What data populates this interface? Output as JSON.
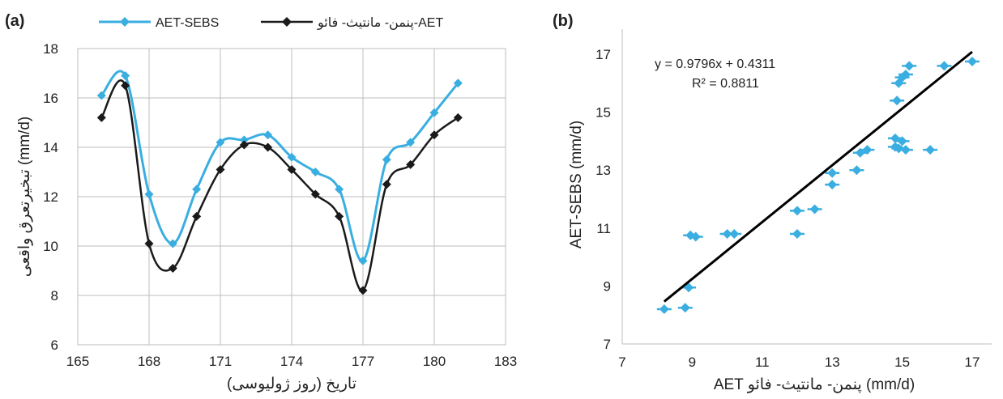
{
  "colors": {
    "sebs": "#3aaee0",
    "aet": "#1a1a1a",
    "grid": "#bdbdbd",
    "fit": "#000000"
  },
  "chart_data": [
    {
      "type": "line",
      "panel": "(a)",
      "xlabel": "تاریخ (روز ژولیوسی)",
      "ylabel": "تبخیرتعرق واقعی (mm/d)",
      "xlim": [
        165,
        183
      ],
      "ylim": [
        6,
        18
      ],
      "xticks": [
        165,
        168,
        171,
        174,
        177,
        180,
        183
      ],
      "yticks": [
        6,
        8,
        10,
        12,
        14,
        16,
        18
      ],
      "grid": true,
      "legend_position": "top",
      "series": [
        {
          "name": "AET-SEBS",
          "color": "#3aaee0",
          "x": [
            166,
            167,
            168,
            169,
            170,
            171,
            172,
            173,
            174,
            175,
            176,
            177,
            178,
            179,
            180,
            181
          ],
          "y": [
            16.1,
            16.9,
            12.1,
            10.1,
            12.3,
            14.2,
            14.3,
            14.5,
            13.6,
            13.0,
            12.3,
            9.4,
            13.5,
            14.2,
            15.4,
            16.6
          ]
        },
        {
          "name": "پنمن- مانتیث- فائو-AET",
          "color": "#1a1a1a",
          "x": [
            166,
            167,
            168,
            169,
            170,
            171,
            172,
            173,
            174,
            175,
            176,
            177,
            178,
            179,
            180,
            181
          ],
          "y": [
            15.2,
            16.5,
            10.1,
            9.1,
            11.2,
            13.1,
            14.1,
            14.0,
            13.1,
            12.1,
            11.2,
            8.2,
            12.5,
            13.3,
            14.5,
            15.2
          ]
        }
      ]
    },
    {
      "type": "scatter",
      "panel": "(b)",
      "xlabel": "AET پنمن- مانتیث- فائو (mm/d)",
      "ylabel": "AET-SEBS (mm/d)",
      "xlim": [
        7,
        17
      ],
      "ylim": [
        7,
        17
      ],
      "xticks": [
        7,
        9,
        11,
        13,
        15,
        17
      ],
      "yticks": [
        7,
        9,
        11,
        13,
        15,
        17
      ],
      "grid": false,
      "equation": "y = 0.9796x + 0.4311",
      "r2": "R² = 0.8811",
      "fit": {
        "slope": 0.9796,
        "intercept": 0.4311,
        "x_range": [
          8.2,
          17.0
        ]
      },
      "points": [
        [
          8.2,
          8.2
        ],
        [
          8.8,
          8.25
        ],
        [
          8.9,
          8.95
        ],
        [
          9.1,
          10.7
        ],
        [
          8.95,
          10.75
        ],
        [
          10.0,
          10.8
        ],
        [
          10.2,
          10.8
        ],
        [
          12.0,
          11.6
        ],
        [
          12.0,
          10.8
        ],
        [
          12.5,
          11.65
        ],
        [
          13.0,
          12.5
        ],
        [
          13.0,
          12.9
        ],
        [
          13.7,
          13.0
        ],
        [
          13.8,
          13.6
        ],
        [
          14.0,
          13.7
        ],
        [
          14.8,
          13.8
        ],
        [
          14.9,
          13.75
        ],
        [
          14.8,
          14.1
        ],
        [
          15.0,
          14.0
        ],
        [
          15.1,
          13.7
        ],
        [
          15.8,
          13.7
        ],
        [
          14.85,
          15.4
        ],
        [
          14.9,
          16.0
        ],
        [
          15.0,
          16.2
        ],
        [
          15.1,
          16.3
        ],
        [
          15.2,
          16.6
        ],
        [
          16.2,
          16.6
        ],
        [
          17.0,
          16.75
        ]
      ]
    }
  ]
}
